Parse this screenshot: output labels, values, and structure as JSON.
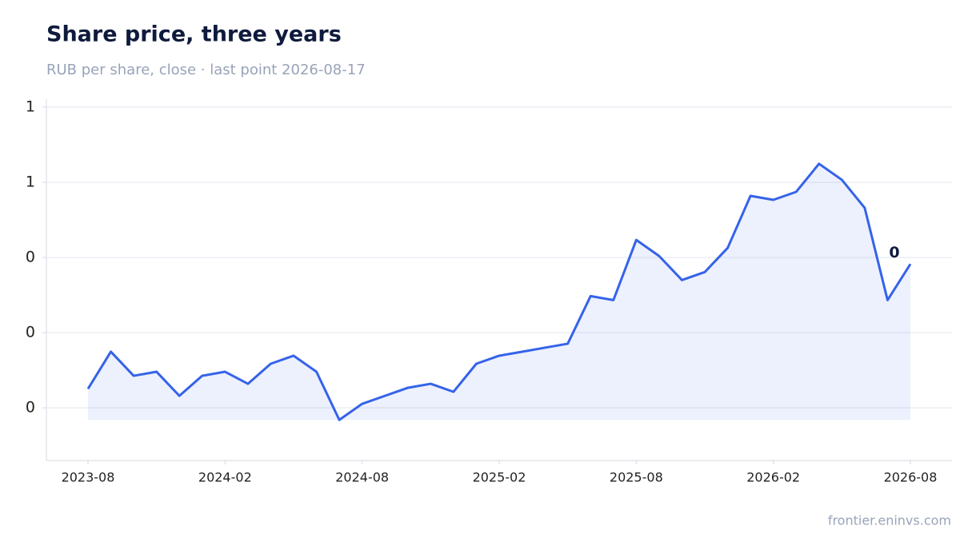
{
  "chart_data": {
    "type": "line",
    "title": "Share price, three years",
    "subtitle": "RUB per share, close · last point 2026-08-17",
    "source": "frontier.eninvs.com",
    "x": [
      "2023-08",
      "2023-09",
      "2023-10",
      "2023-11",
      "2023-12",
      "2024-01",
      "2024-02",
      "2024-03",
      "2024-04",
      "2024-05",
      "2024-06",
      "2024-07",
      "2024-08",
      "2024-09",
      "2024-10",
      "2024-11",
      "2024-12",
      "2025-01",
      "2025-02",
      "2025-03",
      "2025-04",
      "2025-05",
      "2025-06",
      "2025-07",
      "2025-08",
      "2025-09",
      "2025-10",
      "2025-11",
      "2025-12",
      "2026-01",
      "2026-02",
      "2026-03",
      "2026-04",
      "2026-05",
      "2026-06",
      "2026-07",
      "2026-08"
    ],
    "series": [
      {
        "name": "Close",
        "color": "#3563e9",
        "values": [
          0.138,
          0.212,
          0.164,
          0.172,
          0.124,
          0.164,
          0.172,
          0.148,
          0.188,
          0.204,
          0.172,
          0.076,
          0.108,
          0.124,
          0.14,
          0.148,
          0.132,
          0.188,
          0.204,
          0.212,
          0.22,
          0.228,
          0.323,
          0.315,
          0.435,
          0.403,
          0.355,
          0.371,
          0.419,
          0.523,
          0.515,
          0.531,
          0.587,
          0.555,
          0.499,
          0.315,
          0.387
        ]
      }
    ],
    "annotations": [
      {
        "text": "0",
        "x": "2026-08"
      }
    ],
    "ylim": [
      -0.005,
      0.716
    ],
    "yticks": [
      {
        "value": 0.1,
        "label": "0"
      },
      {
        "value": 0.25,
        "label": "0"
      },
      {
        "value": 0.4,
        "label": "0"
      },
      {
        "value": 0.55,
        "label": "1"
      },
      {
        "value": 0.7,
        "label": "1"
      }
    ],
    "xticks": [
      "2023-08",
      "2024-02",
      "2024-08",
      "2025-02",
      "2025-08",
      "2026-02",
      "2026-08"
    ],
    "grid": true
  }
}
